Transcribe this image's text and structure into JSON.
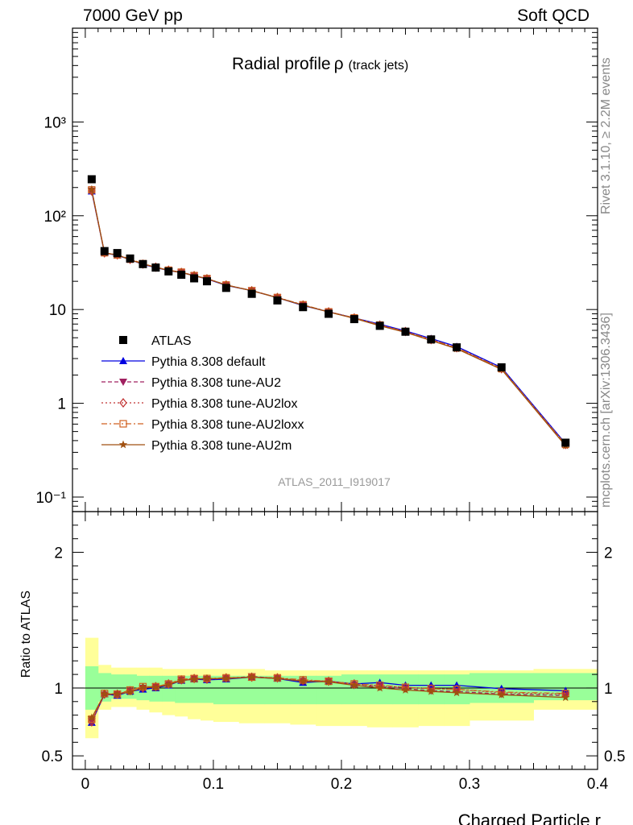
{
  "header": {
    "left": "7000 GeV pp",
    "right": "Soft QCD"
  },
  "side_labels": {
    "rivet": "Rivet 3.1.10, ≥ 2.2M events",
    "mcplots": "mcplots.cern.ch [arXiv:1306.3436]"
  },
  "chart_data": {
    "type": "line",
    "title": "Radial profile",
    "title_symbol": "ρ",
    "title_suffix": "(track jets)",
    "analysis_label": "ATLAS_2011_I919017",
    "xlabel": "Charged Particle r",
    "ylabel_ratio": "Ratio to ATLAS",
    "xlim": [
      -0.01,
      0.4
    ],
    "ylim_main": [
      0.07,
      10000
    ],
    "ylim_ratio": [
      0.4,
      2.3
    ],
    "y_scale_main": "log",
    "x_ticks": [
      "0",
      "0.1",
      "0.2",
      "0.3",
      "0.4"
    ],
    "y_ticks_main": [
      "10⁻¹",
      "1",
      "10",
      "10²",
      "10³"
    ],
    "y_ticks_ratio": [
      "0.5",
      "1",
      "2"
    ],
    "legend_position": "bottom-left",
    "x": [
      0.005,
      0.015,
      0.025,
      0.035,
      0.045,
      0.055,
      0.065,
      0.075,
      0.085,
      0.095,
      0.11,
      0.13,
      0.15,
      0.17,
      0.19,
      0.21,
      0.23,
      0.25,
      0.27,
      0.29,
      0.325,
      0.375
    ],
    "x_edges": [
      0,
      0.01,
      0.02,
      0.03,
      0.04,
      0.05,
      0.06,
      0.07,
      0.08,
      0.09,
      0.1,
      0.12,
      0.14,
      0.16,
      0.18,
      0.2,
      0.22,
      0.24,
      0.26,
      0.28,
      0.3,
      0.35,
      0.4
    ],
    "reference": {
      "name": "ATLAS",
      "values": [
        245,
        42,
        40,
        35,
        30.5,
        28,
        25.5,
        23.5,
        21.5,
        20,
        17,
        14.7,
        12.5,
        10.6,
        9,
        7.9,
        6.7,
        5.8,
        4.8,
        3.95,
        2.42,
        0.38
      ],
      "band_green": [
        [
          0.84,
          1.16
        ],
        [
          0.9,
          1.11
        ],
        [
          0.92,
          1.1
        ],
        [
          0.92,
          1.1
        ],
        [
          0.91,
          1.09
        ],
        [
          0.9,
          1.09
        ],
        [
          0.9,
          1.09
        ],
        [
          0.89,
          1.09
        ],
        [
          0.89,
          1.09
        ],
        [
          0.89,
          1.09
        ],
        [
          0.88,
          1.09
        ],
        [
          0.88,
          1.09
        ],
        [
          0.88,
          1.09
        ],
        [
          0.88,
          1.09
        ],
        [
          0.88,
          1.09
        ],
        [
          0.88,
          1.1
        ],
        [
          0.88,
          1.1
        ],
        [
          0.88,
          1.1
        ],
        [
          0.88,
          1.1
        ],
        [
          0.88,
          1.1
        ],
        [
          0.89,
          1.11
        ],
        [
          0.91,
          1.11
        ]
      ],
      "band_yellow": [
        [
          0.63,
          1.37
        ],
        [
          0.84,
          1.17
        ],
        [
          0.86,
          1.15
        ],
        [
          0.86,
          1.15
        ],
        [
          0.84,
          1.15
        ],
        [
          0.82,
          1.15
        ],
        [
          0.8,
          1.14
        ],
        [
          0.79,
          1.14
        ],
        [
          0.77,
          1.14
        ],
        [
          0.76,
          1.14
        ],
        [
          0.75,
          1.14
        ],
        [
          0.74,
          1.14
        ],
        [
          0.74,
          1.13
        ],
        [
          0.73,
          1.13
        ],
        [
          0.72,
          1.13
        ],
        [
          0.72,
          1.13
        ],
        [
          0.71,
          1.13
        ],
        [
          0.71,
          1.13
        ],
        [
          0.72,
          1.13
        ],
        [
          0.72,
          1.13
        ],
        [
          0.76,
          1.13
        ],
        [
          0.84,
          1.14
        ]
      ]
    },
    "series": [
      {
        "name": "Pythia 8.308 default",
        "color": "#0000e0",
        "dash": "",
        "marker": "triangle-up",
        "ratio": [
          0.745,
          0.955,
          0.945,
          0.975,
          0.99,
          1.0,
          1.02,
          1.055,
          1.065,
          1.06,
          1.065,
          1.08,
          1.07,
          1.04,
          1.05,
          1.03,
          1.04,
          1.02,
          1.02,
          1.02,
          0.995,
          0.98
        ]
      },
      {
        "name": "Pythia 8.308 tune-AU2",
        "color": "#a02060",
        "dash": "5,3",
        "marker": "triangle-down",
        "ratio": [
          0.755,
          0.95,
          0.955,
          0.975,
          1.0,
          1.01,
          1.025,
          1.06,
          1.07,
          1.065,
          1.07,
          1.085,
          1.07,
          1.05,
          1.05,
          1.02,
          1.01,
          0.995,
          0.98,
          0.975,
          0.955,
          0.945
        ]
      },
      {
        "name": "Pythia 8.308 tune-AU2lox",
        "color": "#c03030",
        "dash": "2,3",
        "marker": "diamond",
        "ratio": [
          0.75,
          0.955,
          0.955,
          0.98,
          1.0,
          1.01,
          1.03,
          1.06,
          1.07,
          1.065,
          1.075,
          1.08,
          1.075,
          1.055,
          1.05,
          1.03,
          1.015,
          1.005,
          0.995,
          0.99,
          0.965,
          0.955
        ]
      },
      {
        "name": "Pythia 8.308 tune-AU2loxx",
        "color": "#d06020",
        "dash": "7,3,2,3",
        "marker": "square-open",
        "ratio": [
          0.77,
          0.96,
          0.955,
          0.985,
          1.01,
          1.01,
          1.03,
          1.065,
          1.07,
          1.07,
          1.075,
          1.08,
          1.075,
          1.06,
          1.05,
          1.03,
          1.02,
          1.005,
          0.995,
          0.99,
          0.97,
          0.96
        ]
      },
      {
        "name": "Pythia 8.308 tune-AU2m",
        "color": "#a05010",
        "dash": "",
        "marker": "star",
        "ratio": [
          0.78,
          0.955,
          0.955,
          0.97,
          1.005,
          1.005,
          1.025,
          1.055,
          1.065,
          1.07,
          1.07,
          1.08,
          1.07,
          1.05,
          1.045,
          1.02,
          1.0,
          0.985,
          0.975,
          0.965,
          0.95,
          0.93
        ]
      }
    ]
  }
}
